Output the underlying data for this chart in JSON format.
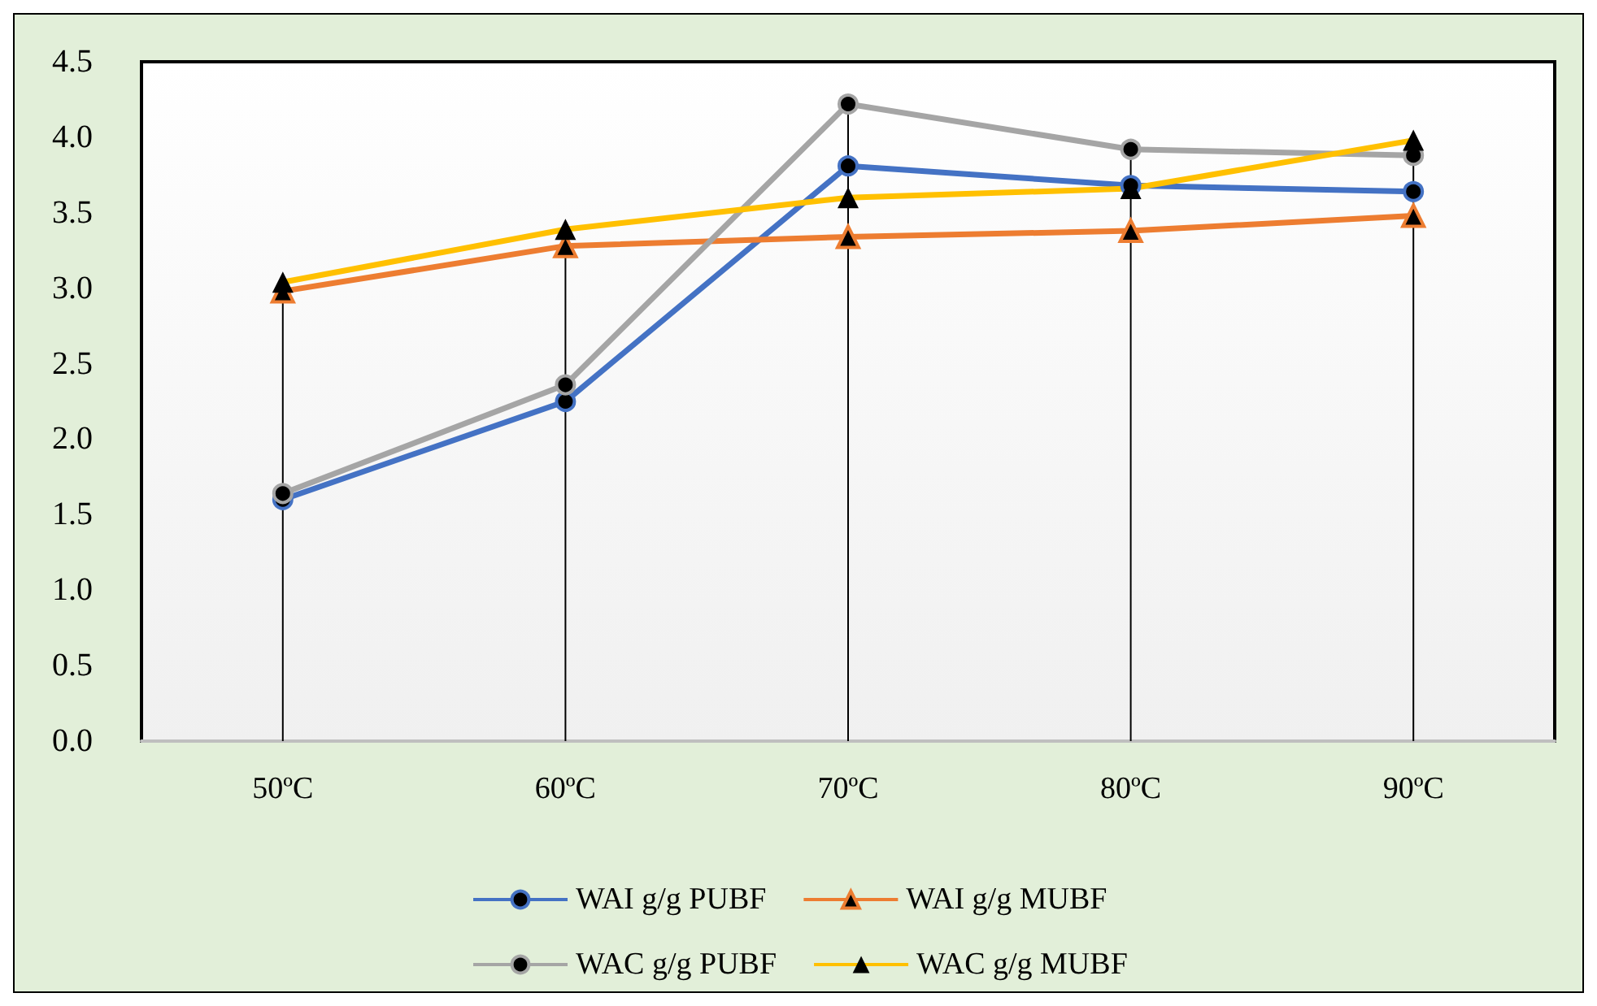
{
  "chart_data": {
    "type": "line",
    "categories": [
      "50ºC",
      "60ºC",
      "70ºC",
      "80ºC",
      "90ºC"
    ],
    "series": [
      {
        "name": "WAI g/g PUBF",
        "color": "#4472c4",
        "marker": "circle",
        "values": [
          1.6,
          2.25,
          3.81,
          3.68,
          3.64
        ]
      },
      {
        "name": "WAI g/g MUBF",
        "color": "#ed7d31",
        "marker": "triangle",
        "values": [
          2.98,
          3.28,
          3.34,
          3.38,
          3.48
        ]
      },
      {
        "name": "WAC g/g PUBF",
        "color": "#a5a5a5",
        "marker": "circle",
        "values": [
          1.64,
          2.36,
          4.22,
          3.92,
          3.88
        ]
      },
      {
        "name": "WAC g/g MUBF",
        "color": "#ffc000",
        "marker": "triangle",
        "values": [
          3.04,
          3.39,
          3.6,
          3.66,
          3.98
        ]
      }
    ],
    "ylim": [
      0,
      4.5
    ],
    "yticks": [
      {
        "value": 0,
        "label": "0.0"
      },
      0.5,
      {
        "value": 1,
        "label": "1.0"
      },
      1.5,
      {
        "value": 2,
        "label": "2.0"
      },
      2.5,
      {
        "value": 3,
        "label": "3.0"
      },
      3.5,
      {
        "value": 4,
        "label": "4.0"
      },
      4.5
    ],
    "grid": false,
    "legend": "bottom",
    "line_style": "solid",
    "ref_lines": [
      {
        "axis": "x",
        "value": "50ºC"
      },
      {
        "axis": "x",
        "value": "60ºC"
      },
      {
        "axis": "x",
        "value": "70ºC"
      },
      {
        "axis": "x",
        "value": "80ºC"
      },
      {
        "axis": "x",
        "value": "90ºC"
      }
    ]
  }
}
